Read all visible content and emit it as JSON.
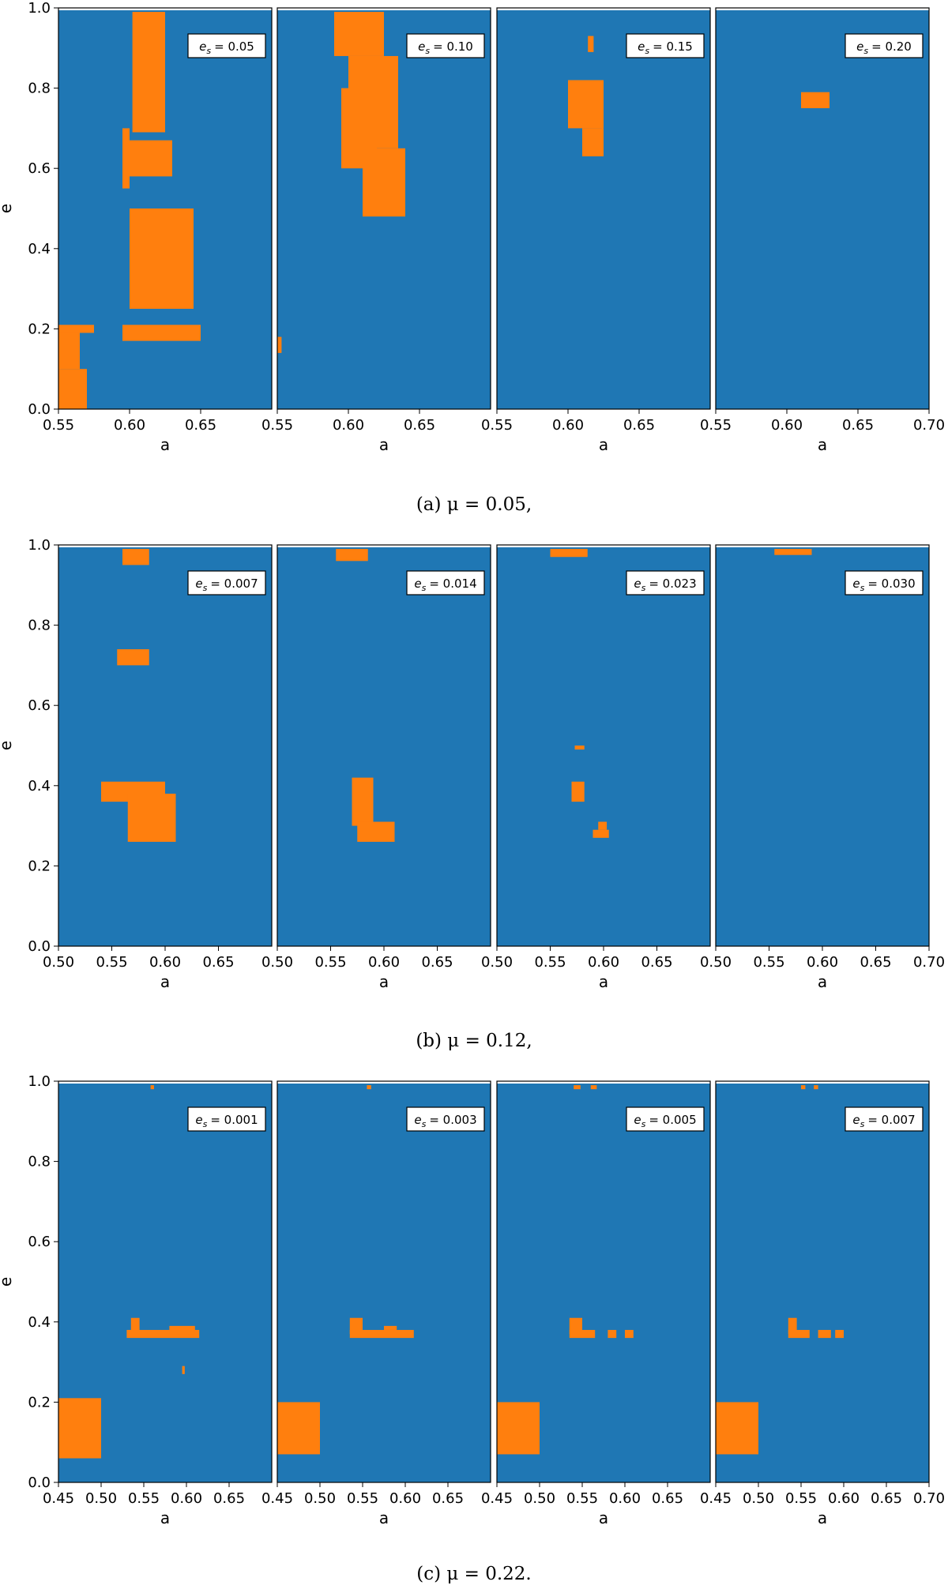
{
  "colors": {
    "background": "#1f77b4",
    "region": "#ff7f0e",
    "frame": "#000000"
  },
  "chart_data": {
    "type": "heatmap",
    "description_axes": {
      "xlabel": "a",
      "ylabel": "e",
      "ylim": [
        0,
        1.0
      ]
    },
    "rows": [
      {
        "caption": "(a) μ = 0.05,",
        "xlim": [
          0.55,
          0.7
        ],
        "shared_x_ticks": [
          "0.55",
          "0.60",
          "0.65"
        ],
        "last_x_ticks": [
          "0.55",
          "0.60",
          "0.65",
          "0.70"
        ],
        "y_ticks": [
          "0.0",
          "0.2",
          "0.4",
          "0.6",
          "0.8",
          "1.0"
        ],
        "panels": [
          {
            "legend_var": "e",
            "legend_sub": "s",
            "legend_value": "= 0.05",
            "regions": [
              [
                0.55,
                0.57,
                0.0,
                0.1
              ],
              [
                0.55,
                0.565,
                0.1,
                0.2
              ],
              [
                0.55,
                0.575,
                0.19,
                0.21
              ],
              [
                0.595,
                0.65,
                0.17,
                0.21
              ],
              [
                0.6,
                0.645,
                0.25,
                0.5
              ],
              [
                0.6,
                0.63,
                0.58,
                0.67
              ],
              [
                0.602,
                0.625,
                0.69,
                0.99
              ],
              [
                0.595,
                0.6,
                0.55,
                0.7
              ]
            ]
          },
          {
            "legend_var": "e",
            "legend_sub": "s",
            "legend_value": "= 0.10",
            "regions": [
              [
                0.55,
                0.553,
                0.14,
                0.18
              ],
              [
                0.59,
                0.625,
                0.88,
                0.99
              ],
              [
                0.6,
                0.635,
                0.65,
                0.88
              ],
              [
                0.595,
                0.62,
                0.6,
                0.8
              ],
              [
                0.61,
                0.64,
                0.48,
                0.65
              ]
            ]
          },
          {
            "legend_var": "e",
            "legend_sub": "s",
            "legend_value": "= 0.15",
            "regions": [
              [
                0.6,
                0.625,
                0.7,
                0.82
              ],
              [
                0.61,
                0.625,
                0.63,
                0.7
              ],
              [
                0.614,
                0.618,
                0.89,
                0.93
              ]
            ]
          },
          {
            "legend_var": "e",
            "legend_sub": "s",
            "legend_value": "= 0.20",
            "regions": [
              [
                0.61,
                0.63,
                0.75,
                0.79
              ]
            ]
          }
        ]
      },
      {
        "caption": "(b) μ = 0.12,",
        "xlim": [
          0.5,
          0.7
        ],
        "shared_x_ticks": [
          "0.50",
          "0.55",
          "0.60",
          "0.65"
        ],
        "last_x_ticks": [
          "0.50",
          "0.55",
          "0.60",
          "0.65",
          "0.70"
        ],
        "y_ticks": [
          "0.0",
          "0.2",
          "0.4",
          "0.6",
          "0.8",
          "1.0"
        ],
        "panels": [
          {
            "legend_var": "e",
            "legend_sub": "s",
            "legend_value": "= 0.007",
            "regions": [
              [
                0.56,
                0.585,
                0.95,
                0.99
              ],
              [
                0.555,
                0.585,
                0.7,
                0.74
              ],
              [
                0.54,
                0.6,
                0.36,
                0.41
              ],
              [
                0.565,
                0.61,
                0.26,
                0.38
              ]
            ]
          },
          {
            "legend_var": "e",
            "legend_sub": "s",
            "legend_value": "= 0.014",
            "regions": [
              [
                0.555,
                0.585,
                0.96,
                0.99
              ],
              [
                0.57,
                0.59,
                0.3,
                0.42
              ],
              [
                0.575,
                0.61,
                0.26,
                0.31
              ]
            ]
          },
          {
            "legend_var": "e",
            "legend_sub": "s",
            "legend_value": "= 0.023",
            "regions": [
              [
                0.55,
                0.585,
                0.97,
                0.99
              ],
              [
                0.573,
                0.582,
                0.49,
                0.5
              ],
              [
                0.57,
                0.582,
                0.36,
                0.41
              ],
              [
                0.59,
                0.605,
                0.27,
                0.29
              ],
              [
                0.595,
                0.603,
                0.29,
                0.31
              ]
            ]
          },
          {
            "legend_var": "e",
            "legend_sub": "s",
            "legend_value": "= 0.030",
            "regions": [
              [
                0.555,
                0.59,
                0.975,
                0.99
              ]
            ]
          }
        ]
      },
      {
        "caption": "(c) μ = 0.22.",
        "xlim": [
          0.45,
          0.7
        ],
        "shared_x_ticks": [
          "0.45",
          "0.50",
          "0.55",
          "0.60",
          "0.65"
        ],
        "last_x_ticks": [
          "0.45",
          "0.50",
          "0.55",
          "0.60",
          "0.65",
          "0.70"
        ],
        "y_ticks": [
          "0.0",
          "0.2",
          "0.4",
          "0.6",
          "0.8",
          "1.0"
        ],
        "panels": [
          {
            "legend_var": "e",
            "legend_sub": "s",
            "legend_value": "= 0.001",
            "regions": [
              [
                0.45,
                0.5,
                0.06,
                0.21
              ],
              [
                0.535,
                0.545,
                0.37,
                0.41
              ],
              [
                0.53,
                0.615,
                0.36,
                0.38
              ],
              [
                0.58,
                0.61,
                0.37,
                0.39
              ],
              [
                0.558,
                0.562,
                0.98,
                0.99
              ],
              [
                0.595,
                0.598,
                0.27,
                0.29
              ]
            ]
          },
          {
            "legend_var": "e",
            "legend_sub": "s",
            "legend_value": "= 0.003",
            "regions": [
              [
                0.45,
                0.5,
                0.07,
                0.2
              ],
              [
                0.535,
                0.55,
                0.37,
                0.41
              ],
              [
                0.535,
                0.61,
                0.36,
                0.38
              ],
              [
                0.575,
                0.59,
                0.38,
                0.39
              ],
              [
                0.555,
                0.56,
                0.98,
                0.99
              ]
            ]
          },
          {
            "legend_var": "e",
            "legend_sub": "s",
            "legend_value": "= 0.005",
            "regions": [
              [
                0.45,
                0.5,
                0.07,
                0.2
              ],
              [
                0.535,
                0.55,
                0.37,
                0.41
              ],
              [
                0.535,
                0.565,
                0.36,
                0.38
              ],
              [
                0.58,
                0.59,
                0.36,
                0.38
              ],
              [
                0.6,
                0.61,
                0.36,
                0.38
              ],
              [
                0.54,
                0.548,
                0.98,
                0.99
              ],
              [
                0.56,
                0.567,
                0.98,
                0.99
              ]
            ]
          },
          {
            "legend_var": "e",
            "legend_sub": "s",
            "legend_value": "= 0.007",
            "regions": [
              [
                0.45,
                0.5,
                0.07,
                0.2
              ],
              [
                0.535,
                0.545,
                0.37,
                0.41
              ],
              [
                0.535,
                0.56,
                0.36,
                0.38
              ],
              [
                0.57,
                0.585,
                0.36,
                0.38
              ],
              [
                0.59,
                0.6,
                0.36,
                0.38
              ],
              [
                0.55,
                0.555,
                0.98,
                0.99
              ],
              [
                0.565,
                0.57,
                0.98,
                0.99
              ]
            ]
          }
        ]
      }
    ]
  }
}
